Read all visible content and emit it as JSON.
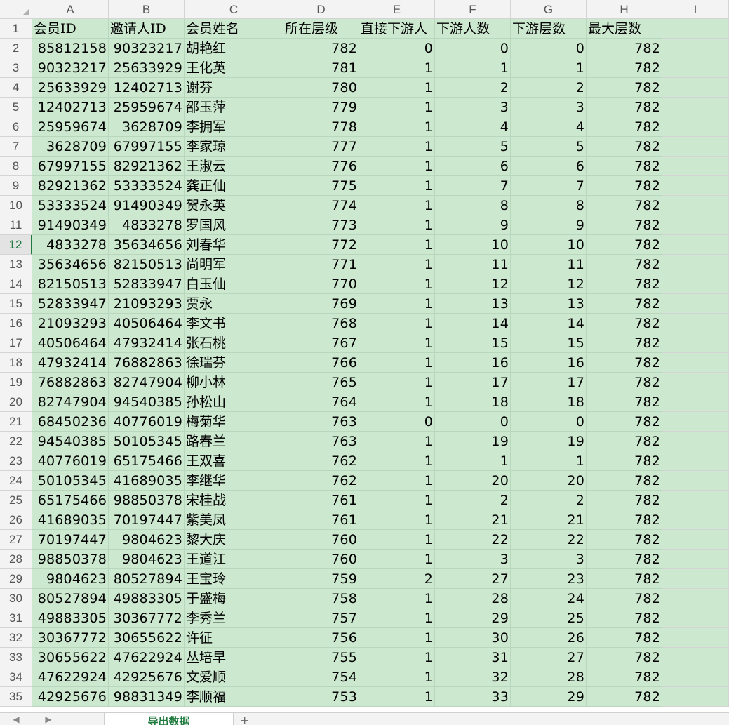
{
  "columns": [
    "A",
    "B",
    "C",
    "D",
    "E",
    "F",
    "G",
    "H",
    "I"
  ],
  "header_row": {
    "row": "1",
    "cells": [
      "会员ID",
      "邀请人ID",
      "会员姓名",
      "所在层级",
      "直接下游人",
      "下游人数",
      "下游层数",
      "最大层数"
    ]
  },
  "rows": [
    {
      "row": "2",
      "cells": [
        "85812158",
        "90323217",
        "胡艳红",
        "782",
        "0",
        "0",
        "0",
        "782"
      ]
    },
    {
      "row": "3",
      "cells": [
        "90323217",
        "25633929",
        "王化英",
        "781",
        "1",
        "1",
        "1",
        "782"
      ]
    },
    {
      "row": "4",
      "cells": [
        "25633929",
        "12402713",
        "谢芬",
        "780",
        "1",
        "2",
        "2",
        "782"
      ]
    },
    {
      "row": "5",
      "cells": [
        "12402713",
        "25959674",
        "邵玉萍",
        "779",
        "1",
        "3",
        "3",
        "782"
      ]
    },
    {
      "row": "6",
      "cells": [
        "25959674",
        "3628709",
        "李拥军",
        "778",
        "1",
        "4",
        "4",
        "782"
      ]
    },
    {
      "row": "7",
      "cells": [
        "3628709",
        "67997155",
        "李家琼",
        "777",
        "1",
        "5",
        "5",
        "782"
      ]
    },
    {
      "row": "8",
      "cells": [
        "67997155",
        "82921362",
        "王淑云",
        "776",
        "1",
        "6",
        "6",
        "782"
      ]
    },
    {
      "row": "9",
      "cells": [
        "82921362",
        "53333524",
        "龚正仙",
        "775",
        "1",
        "7",
        "7",
        "782"
      ]
    },
    {
      "row": "10",
      "cells": [
        "53333524",
        "91490349",
        "贺永英",
        "774",
        "1",
        "8",
        "8",
        "782"
      ]
    },
    {
      "row": "11",
      "cells": [
        "91490349",
        "4833278",
        "罗国风",
        "773",
        "1",
        "9",
        "9",
        "782"
      ]
    },
    {
      "row": "12",
      "cells": [
        "4833278",
        "35634656",
        "刘春华",
        "772",
        "1",
        "10",
        "10",
        "782"
      ]
    },
    {
      "row": "13",
      "cells": [
        "35634656",
        "82150513",
        "尚明军",
        "771",
        "1",
        "11",
        "11",
        "782"
      ]
    },
    {
      "row": "14",
      "cells": [
        "82150513",
        "52833947",
        "白玉仙",
        "770",
        "1",
        "12",
        "12",
        "782"
      ]
    },
    {
      "row": "15",
      "cells": [
        "52833947",
        "21093293",
        "贾永",
        "769",
        "1",
        "13",
        "13",
        "782"
      ]
    },
    {
      "row": "16",
      "cells": [
        "21093293",
        "40506464",
        "李文书",
        "768",
        "1",
        "14",
        "14",
        "782"
      ]
    },
    {
      "row": "17",
      "cells": [
        "40506464",
        "47932414",
        "张石桃",
        "767",
        "1",
        "15",
        "15",
        "782"
      ]
    },
    {
      "row": "18",
      "cells": [
        "47932414",
        "76882863",
        "徐瑞芬",
        "766",
        "1",
        "16",
        "16",
        "782"
      ]
    },
    {
      "row": "19",
      "cells": [
        "76882863",
        "82747904",
        "柳小林",
        "765",
        "1",
        "17",
        "17",
        "782"
      ]
    },
    {
      "row": "20",
      "cells": [
        "82747904",
        "94540385",
        "孙松山",
        "764",
        "1",
        "18",
        "18",
        "782"
      ]
    },
    {
      "row": "21",
      "cells": [
        "68450236",
        "40776019",
        "梅菊华",
        "763",
        "0",
        "0",
        "0",
        "782"
      ]
    },
    {
      "row": "22",
      "cells": [
        "94540385",
        "50105345",
        "路春兰",
        "763",
        "1",
        "19",
        "19",
        "782"
      ]
    },
    {
      "row": "23",
      "cells": [
        "40776019",
        "65175466",
        "王双喜",
        "762",
        "1",
        "1",
        "1",
        "782"
      ]
    },
    {
      "row": "24",
      "cells": [
        "50105345",
        "41689035",
        "李继华",
        "762",
        "1",
        "20",
        "20",
        "782"
      ]
    },
    {
      "row": "25",
      "cells": [
        "65175466",
        "98850378",
        "宋桂战",
        "761",
        "1",
        "2",
        "2",
        "782"
      ]
    },
    {
      "row": "26",
      "cells": [
        "41689035",
        "70197447",
        "紫美凤",
        "761",
        "1",
        "21",
        "21",
        "782"
      ]
    },
    {
      "row": "27",
      "cells": [
        "70197447",
        "9804623",
        "黎大庆",
        "760",
        "1",
        "22",
        "22",
        "782"
      ]
    },
    {
      "row": "28",
      "cells": [
        "98850378",
        "9804623",
        "王道江",
        "760",
        "1",
        "3",
        "3",
        "782"
      ]
    },
    {
      "row": "29",
      "cells": [
        "9804623",
        "80527894",
        "王宝玲",
        "759",
        "2",
        "27",
        "23",
        "782"
      ]
    },
    {
      "row": "30",
      "cells": [
        "80527894",
        "49883305",
        "于盛梅",
        "758",
        "1",
        "28",
        "24",
        "782"
      ]
    },
    {
      "row": "31",
      "cells": [
        "49883305",
        "30367772",
        "李秀兰",
        "757",
        "1",
        "29",
        "25",
        "782"
      ]
    },
    {
      "row": "32",
      "cells": [
        "30367772",
        "30655622",
        "许征",
        "756",
        "1",
        "30",
        "26",
        "782"
      ]
    },
    {
      "row": "33",
      "cells": [
        "30655622",
        "47622924",
        "丛培早",
        "755",
        "1",
        "31",
        "27",
        "782"
      ]
    },
    {
      "row": "34",
      "cells": [
        "47622924",
        "42925676",
        "文爱顺",
        "754",
        "1",
        "32",
        "28",
        "782"
      ]
    },
    {
      "row": "35",
      "cells": [
        "42925676",
        "98831349",
        "李顺福",
        "753",
        "1",
        "33",
        "29",
        "782"
      ]
    }
  ],
  "active_row": "12",
  "sheet_tab": {
    "label": "导出数据"
  },
  "add_sheet": {
    "label": "+"
  },
  "tab_nav": {
    "first": "◀",
    "last": "▶"
  },
  "colors": {
    "data_fill": "#cce8cf",
    "header_bg": "#f3f3f3",
    "accent": "#1f7a3d"
  }
}
